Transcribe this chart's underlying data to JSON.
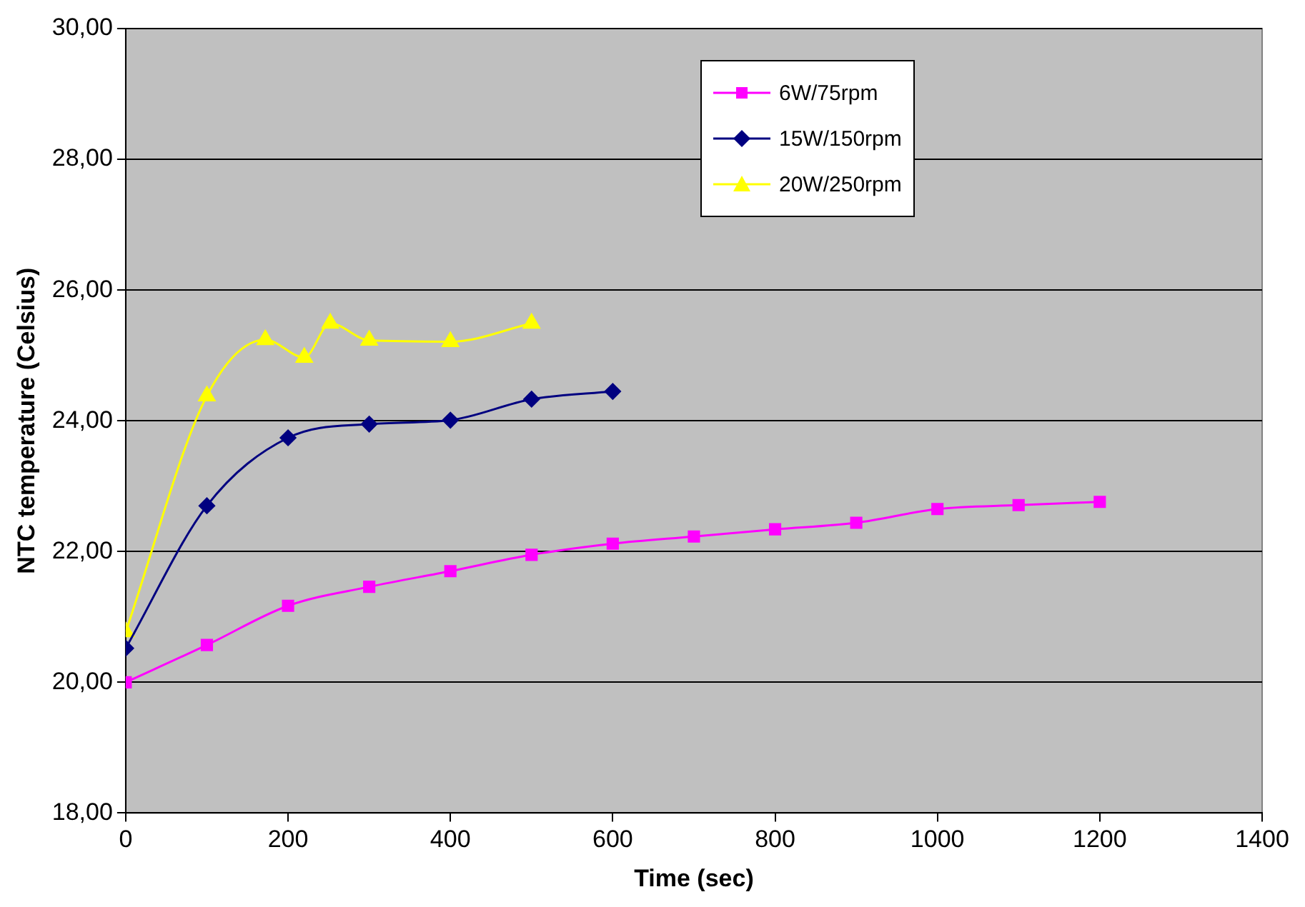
{
  "chart_data": {
    "type": "line",
    "xlabel": "Time (sec)",
    "ylabel": "NTC temperature (Celsius)",
    "xlim": [
      0,
      1400
    ],
    "xticks": [
      0,
      200,
      400,
      600,
      800,
      1000,
      1200,
      1400
    ],
    "ylim": [
      18,
      30
    ],
    "yticks": [
      {
        "value": 18,
        "label": "18,00"
      },
      {
        "value": 20,
        "label": "20,00"
      },
      {
        "value": 22,
        "label": "22,00"
      },
      {
        "value": 24,
        "label": "24,00"
      },
      {
        "value": 26,
        "label": "26,00"
      },
      {
        "value": 28,
        "label": "28,00"
      },
      {
        "value": 30,
        "label": "30,00"
      }
    ],
    "grid": "y",
    "legend": "top right",
    "line_style": "solid",
    "series": [
      {
        "name": "6W/75rpm",
        "color": "#ff00ff",
        "marker": "square",
        "x": [
          0,
          100,
          200,
          300,
          400,
          500,
          600,
          700,
          800,
          900,
          1000,
          1100,
          1200
        ],
        "values": [
          20.0,
          20.57,
          21.17,
          21.46,
          21.7,
          21.95,
          22.12,
          22.23,
          22.34,
          22.44,
          22.65,
          22.71,
          22.76
        ]
      },
      {
        "name": "15W/150rpm",
        "color": "#000080",
        "marker": "diamond",
        "x": [
          0,
          100,
          200,
          300,
          400,
          500,
          600
        ],
        "values": [
          20.52,
          22.7,
          23.74,
          23.95,
          24.01,
          24.33,
          24.45
        ]
      },
      {
        "name": "20W/250rpm",
        "color": "#ffff00",
        "marker": "triangle",
        "x": [
          0,
          100,
          172,
          220,
          252,
          300,
          400,
          500
        ],
        "values": [
          20.77,
          24.38,
          25.24,
          24.97,
          25.49,
          25.23,
          25.21,
          25.49
        ]
      }
    ]
  }
}
